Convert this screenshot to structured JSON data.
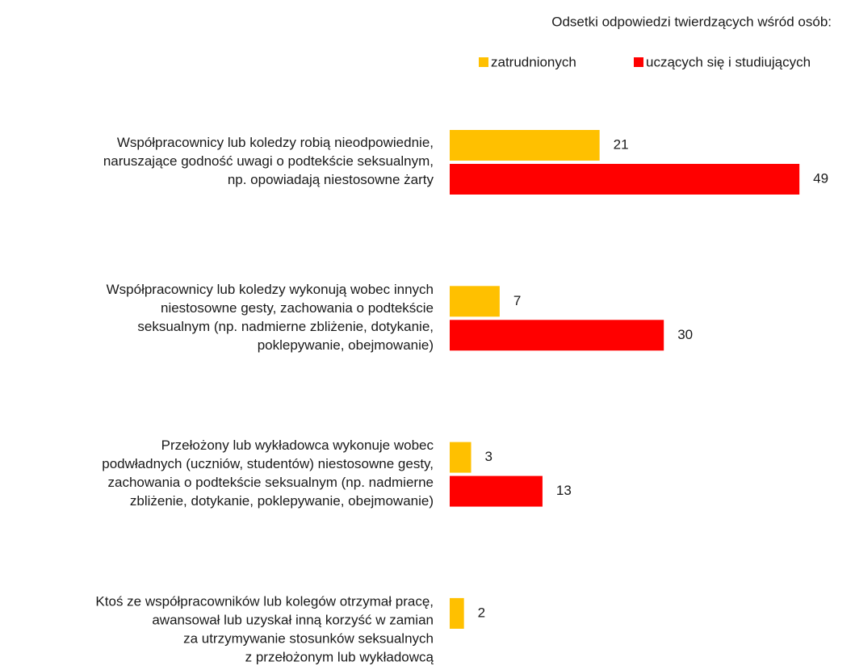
{
  "chart_data": {
    "type": "bar",
    "orientation": "horizontal",
    "legend_title": "Odsetki odpowiedzi twierdzących wśród osób:",
    "legend_position": "top-right",
    "categories": [
      "Współpracownicy lub koledzy robią nieodpowiednie,\nnaruszające godność uwagi o podtekście seksualnym,\nnp. opowiadają niestosowne żarty",
      "Współpracownicy lub koledzy wykonują wobec innych\nniestosowne gesty, zachowania o podtekście\nseksualnym (np. nadmierne zbliżenie, dotykanie,\npoklepywanie, obejmowanie)",
      "Przełożony lub wykładowca wykonuje wobec\npodwładnych (uczniów, studentów) niestosowne gesty,\nzachowania o podtekście seksualnym (np. nadmierne\nzbliżenie, dotykanie, poklepywanie, obejmowanie)",
      "Ktoś ze współpracowników lub kolegów otrzymał pracę,\nawansował lub uzyskał inną korzyść w zamian\nza utrzymywanie stosunków seksualnych\nz przełożonym lub wykładowcą"
    ],
    "series": [
      {
        "name": "zatrudnionych",
        "color": "#FFC000",
        "values": [
          21,
          7,
          3,
          2
        ]
      },
      {
        "name": "uczących się i studiujących",
        "color": "#FF0000",
        "values": [
          49,
          30,
          13,
          null
        ]
      }
    ]
  }
}
